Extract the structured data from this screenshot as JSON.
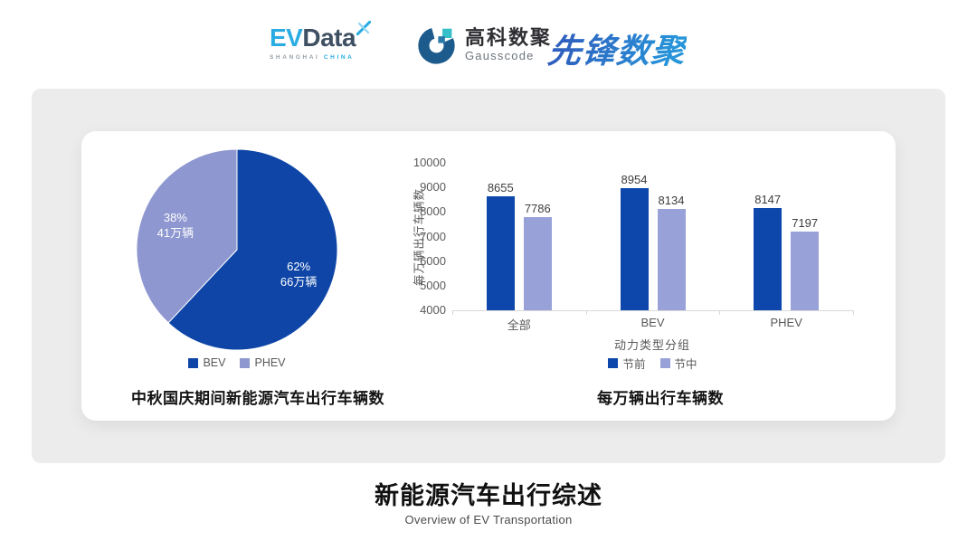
{
  "header": {
    "evdata": {
      "ev": "EV",
      "data": "Data",
      "sub1": "SHANGHAI",
      "sub2": "CHINA"
    },
    "gausscode": {
      "cn": "高科数聚",
      "en": "Gausscode"
    },
    "xianfeng": "先锋数聚"
  },
  "colors": {
    "bev_blue": "#0E45A6",
    "phev_purple": "#8E97D0",
    "bar_dark_blue": "#0D47AB",
    "bar_light_purple": "#99A2D8",
    "evdata_blue": "#2AACE3",
    "evdata_dark": "#3E5062",
    "gauss_dark_blue": "#1D5B8D",
    "gauss_teal": "#35BFC9",
    "panel_gray": "#ECECEC",
    "axis_gray": "#D9D9D9",
    "tick_text_gray": "#595959"
  },
  "chart_data": [
    {
      "type": "pie",
      "title": "中秋国庆期间新能源汽车出行车辆数",
      "legend": [
        "BEV",
        "PHEV"
      ],
      "legend_position": "bottom",
      "slices": [
        {
          "label": "BEV",
          "pct": 62,
          "text": "62%",
          "subtext": "66万辆",
          "color": "#0E45A6"
        },
        {
          "label": "PHEV",
          "pct": 38,
          "text": "38%",
          "subtext": "41万辆",
          "color": "#8E97D0"
        }
      ]
    },
    {
      "type": "bar",
      "title": "每万辆出行车辆数",
      "ylabel": "每万辆出行车辆数",
      "xlabel": "动力类型分组",
      "categories": [
        "全部",
        "BEV",
        "PHEV"
      ],
      "series": [
        {
          "name": "节前",
          "color": "#0D47AB",
          "values": [
            8655,
            8954,
            8147
          ]
        },
        {
          "name": "节中",
          "color": "#99A2D8",
          "values": [
            7786,
            8134,
            7197
          ]
        }
      ],
      "ylim": [
        4000,
        10000
      ],
      "ytick_step": 1000,
      "grid": false,
      "legend_position": "bottom"
    }
  ],
  "footer": {
    "title": "新能源汽车出行综述",
    "subtitle": "Overview of EV Transportation"
  }
}
